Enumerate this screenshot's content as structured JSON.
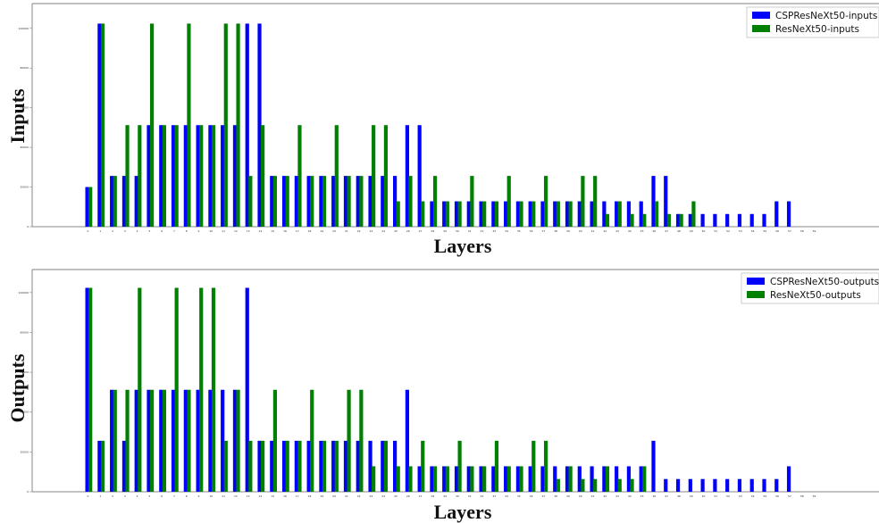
{
  "chart_data": [
    {
      "type": "bar",
      "ylabel": "Inputs",
      "xlabel": "Layers",
      "legend_position": "top-right",
      "series": [
        {
          "name": "CSPResNeXt50-inputs",
          "color": "#0000ff",
          "values": [
            20000,
            102400,
            25600,
            25600,
            25600,
            51200,
            51200,
            51200,
            51200,
            51200,
            51200,
            51200,
            51200,
            102400,
            102400,
            25600,
            25600,
            25600,
            25600,
            25600,
            25600,
            25600,
            25600,
            25600,
            25600,
            25600,
            51200,
            51200,
            12800,
            12800,
            12800,
            12800,
            12800,
            12800,
            12800,
            12800,
            12800,
            12800,
            12800,
            12800,
            12800,
            12800,
            12800,
            12800,
            12800,
            12800,
            25600,
            25600,
            6400,
            6400,
            6400,
            6400,
            6400,
            6400,
            6400,
            6400,
            12800,
            12800,
            0,
            0
          ]
        },
        {
          "name": "ResNeXt50-inputs",
          "color": "#008000",
          "values": [
            20000,
            102400,
            25600,
            51200,
            51200,
            102400,
            51200,
            51200,
            102400,
            51200,
            51200,
            102400,
            102400,
            25600,
            51200,
            25600,
            25600,
            51200,
            25600,
            25600,
            51200,
            25600,
            25600,
            51200,
            51200,
            12800,
            25600,
            12800,
            25600,
            12800,
            12800,
            25600,
            12800,
            12800,
            25600,
            12800,
            12800,
            25600,
            12800,
            12800,
            25600,
            25600,
            6400,
            12800,
            6400,
            6400,
            12800,
            6400,
            6400,
            12800,
            0,
            0,
            0,
            0,
            0,
            0,
            0,
            0,
            0,
            0
          ]
        }
      ],
      "ylim": [
        0,
        108000
      ],
      "yticks": [
        0,
        20000,
        40000,
        60000,
        80000,
        100000
      ]
    },
    {
      "type": "bar",
      "ylabel": "Outputs",
      "xlabel": "Layers",
      "legend_position": "top-right",
      "series": [
        {
          "name": "CSPResNeXt50-outputs",
          "color": "#0000ff",
          "values": [
            102400,
            25600,
            51200,
            25600,
            51200,
            51200,
            51200,
            51200,
            51200,
            51200,
            51200,
            51200,
            51200,
            102400,
            25600,
            25600,
            25600,
            25600,
            25600,
            25600,
            25600,
            25600,
            25600,
            25600,
            25600,
            25600,
            51200,
            12800,
            12800,
            12800,
            12800,
            12800,
            12800,
            12800,
            12800,
            12800,
            12800,
            12800,
            12800,
            12800,
            12800,
            12800,
            12800,
            12800,
            12800,
            12800,
            25600,
            6400,
            6400,
            6400,
            6400,
            6400,
            6400,
            6400,
            6400,
            6400,
            6400,
            12800,
            0,
            0
          ]
        },
        {
          "name": "ResNeXt50-outputs",
          "color": "#008000",
          "values": [
            102400,
            25600,
            51200,
            51200,
            102400,
            51200,
            51200,
            102400,
            51200,
            102400,
            102400,
            25600,
            51200,
            25600,
            25600,
            51200,
            25600,
            25600,
            51200,
            25600,
            25600,
            51200,
            51200,
            12800,
            25600,
            12800,
            12800,
            25600,
            12800,
            12800,
            25600,
            12800,
            12800,
            25600,
            12800,
            12800,
            25600,
            25600,
            6400,
            12800,
            6400,
            6400,
            12800,
            6400,
            6400,
            12800,
            0,
            0,
            0,
            0,
            0,
            0,
            0,
            0,
            0,
            0,
            0,
            0,
            0,
            0
          ]
        }
      ],
      "ylim": [
        0,
        108000
      ],
      "yticks": [
        0,
        20000,
        40000,
        60000,
        80000,
        100000
      ]
    }
  ]
}
